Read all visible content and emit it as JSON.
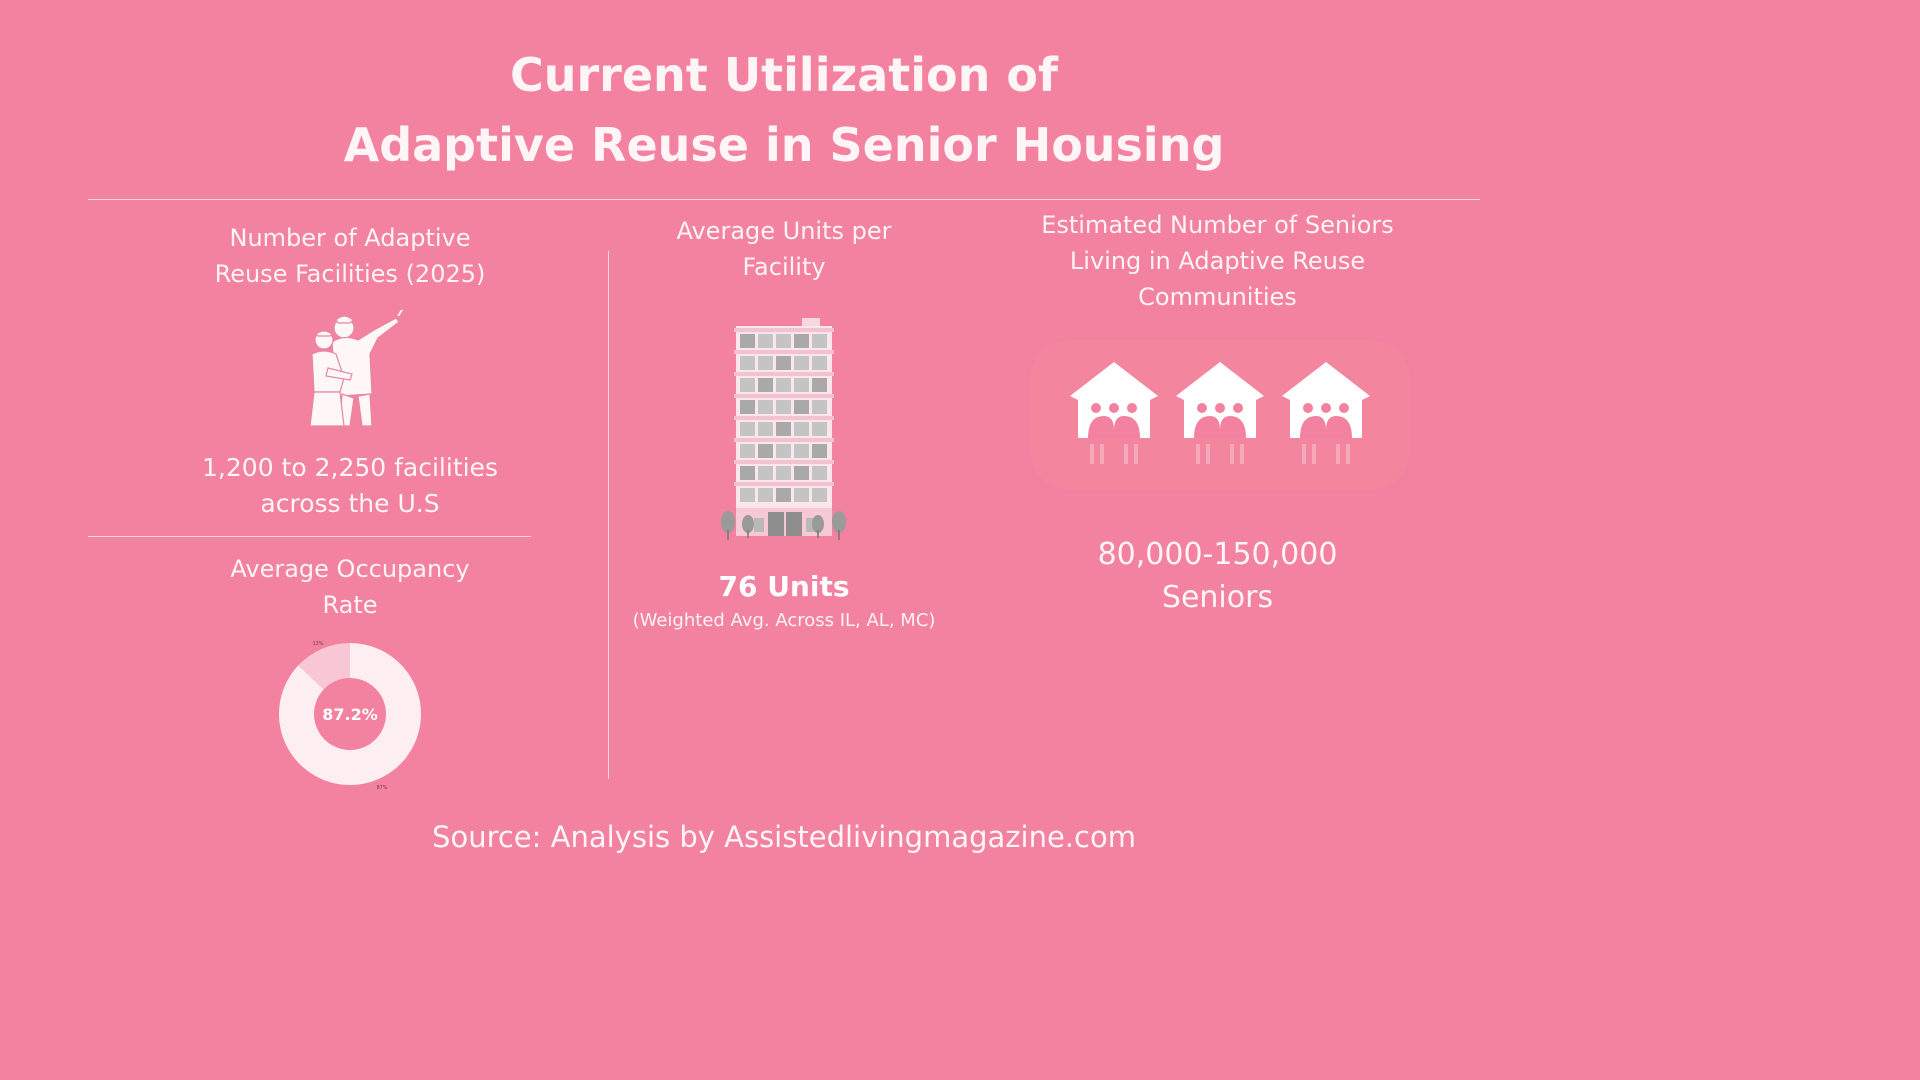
{
  "title": {
    "line1": "Current Utilization of",
    "line2": "Adaptive Reuse in Senior Housing"
  },
  "facilities": {
    "label_line1": "Number of Adaptive",
    "label_line2": "Reuse Facilities (2025)",
    "value_line1": "1,200 to 2,250 facilities",
    "value_line2": "across the U.S",
    "icon": "people-pointing-illustration"
  },
  "occupancy": {
    "label_line1": "Average Occupancy",
    "label_line2": "Rate",
    "center_label": "87.2%"
  },
  "units": {
    "label_line1": "Average Units per",
    "label_line2": "Facility",
    "value": "76 Units",
    "note": "(Weighted Avg. Across IL, AL, MC)",
    "icon": "apartment-building-icon"
  },
  "seniors": {
    "label_line1": "Estimated Number of Seniors",
    "label_line2": "Living in Adaptive Reuse",
    "label_line3": "Communities",
    "value_line1": "80,000-150,000",
    "value_line2": "Seniors",
    "icon": "community-houses-icon"
  },
  "source": "Source: Analysis by Assistedlivingmagazine.com",
  "colors": {
    "background": "#f2829f",
    "donut_main": "#fdeef1",
    "donut_minor": "#f9c6d3",
    "divider": "#fbd6df"
  },
  "chart_data": {
    "type": "pie",
    "variant": "donut",
    "categories": [
      "87%",
      "13%"
    ],
    "values": [
      87,
      13
    ],
    "data_labels": [
      "87%",
      "13%"
    ],
    "center_label": "87.2%"
  }
}
